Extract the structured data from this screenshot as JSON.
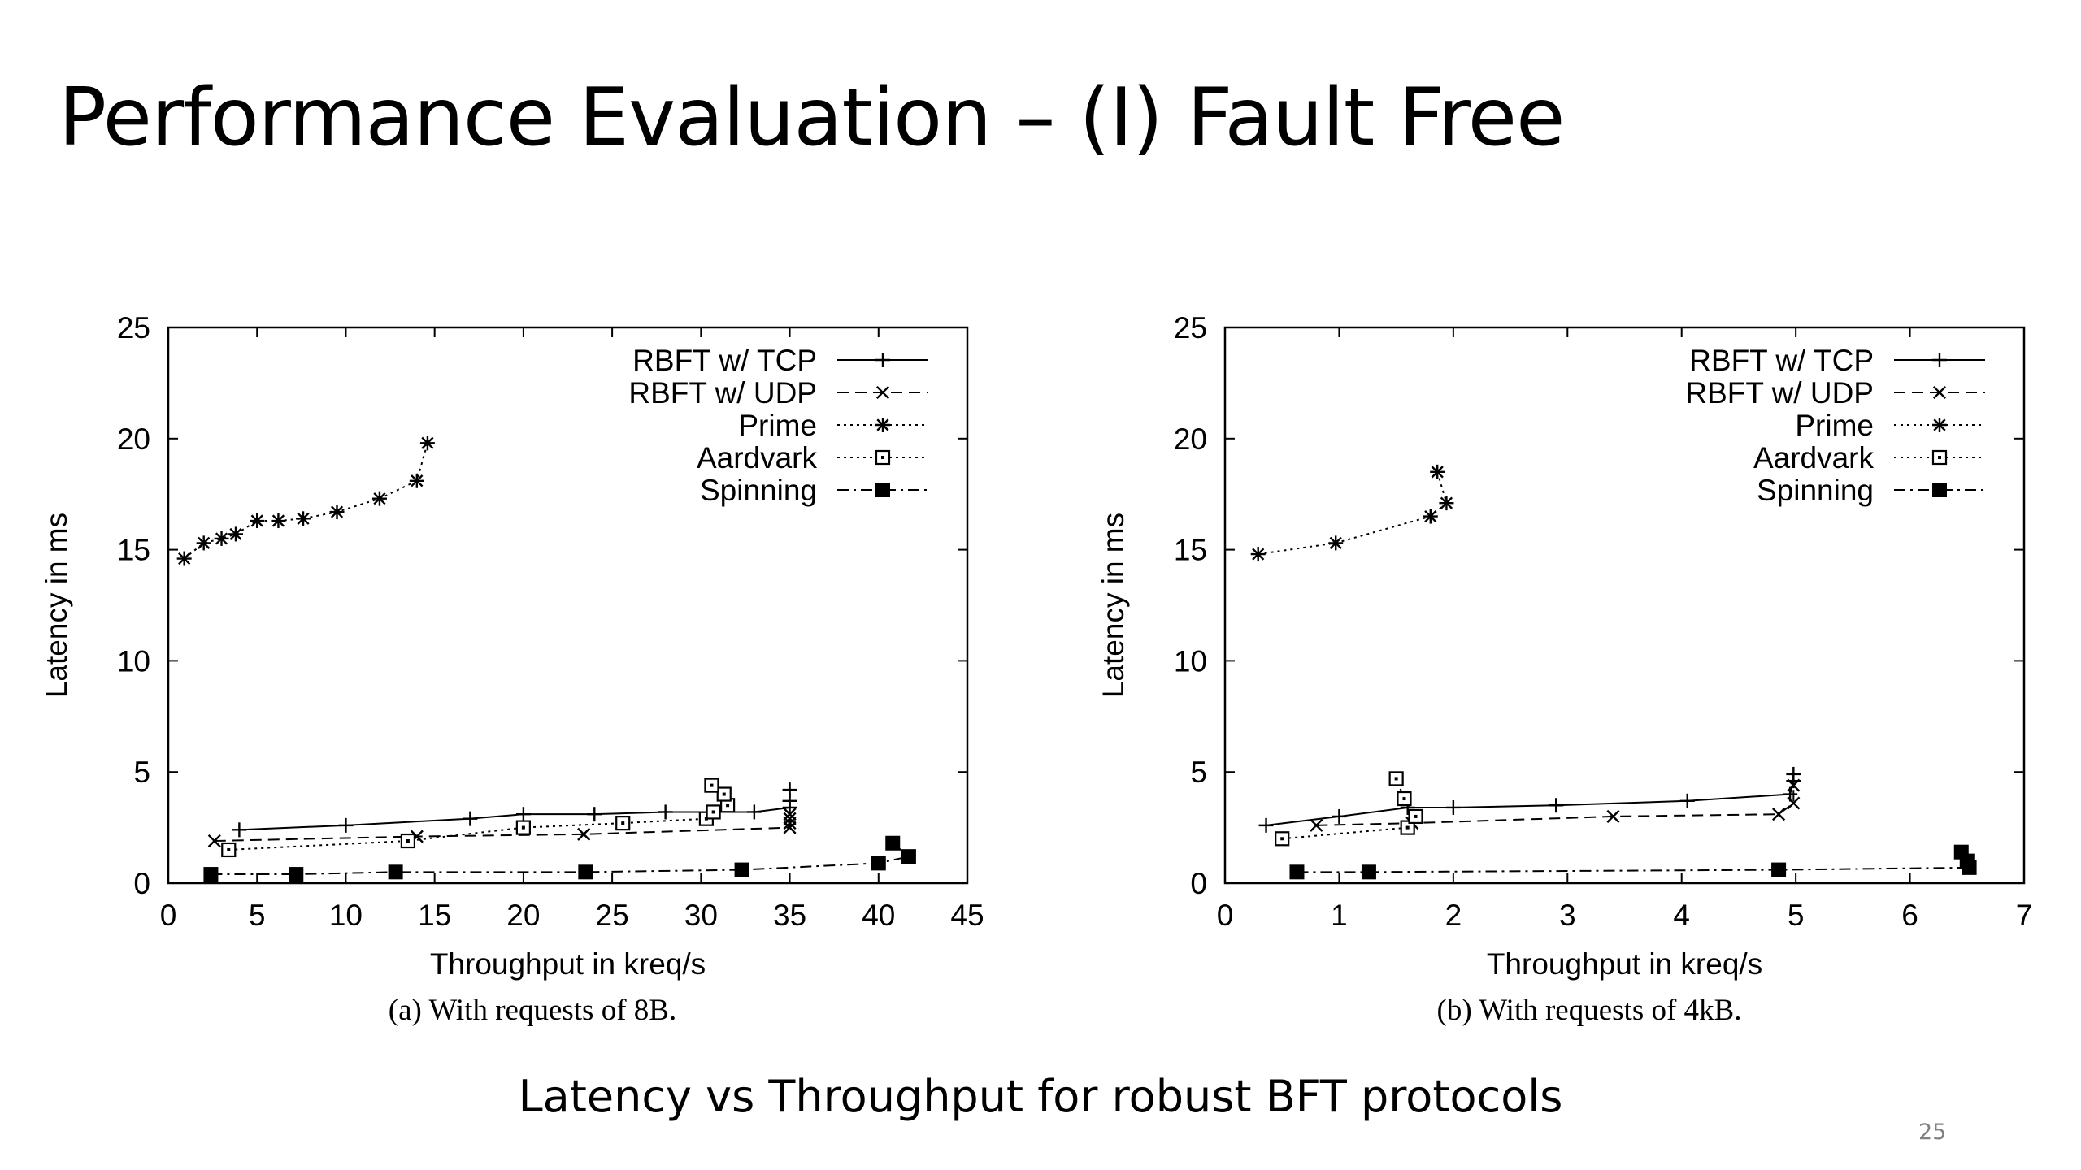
{
  "slide": {
    "title": "Performance Evaluation – (I) Fault Free",
    "subtitle": "Latency vs Throughput for robust BFT protocols",
    "page_number": "25"
  },
  "chart_data": [
    {
      "type": "line",
      "caption": "(a) With requests of 8B.",
      "xlabel": "Throughput in kreq/s",
      "ylabel": "Latency in ms",
      "xlim": [
        0,
        45
      ],
      "ylim": [
        0,
        25
      ],
      "xticks": [
        0,
        5,
        10,
        15,
        20,
        25,
        30,
        35,
        40,
        45
      ],
      "yticks": [
        0,
        5,
        10,
        15,
        20,
        25
      ],
      "legend_position": "top-right",
      "grid": false,
      "series": [
        {
          "name": "RBFT w/ TCP",
          "marker": "plus",
          "dash": "solid",
          "points": [
            [
              4,
              2.4
            ],
            [
              10,
              2.6
            ],
            [
              17,
              2.9
            ],
            [
              20,
              3.1
            ],
            [
              24,
              3.1
            ],
            [
              28,
              3.2
            ],
            [
              33,
              3.2
            ],
            [
              35,
              3.4
            ],
            [
              35,
              3.7
            ],
            [
              35,
              4.2
            ]
          ]
        },
        {
          "name": "RBFT w/ UDP",
          "marker": "cross",
          "dash": "dashed",
          "points": [
            [
              2.6,
              1.9
            ],
            [
              14,
              2.1
            ],
            [
              23.4,
              2.2
            ],
            [
              35,
              2.5
            ],
            [
              35,
              2.7
            ],
            [
              35,
              2.9
            ],
            [
              35,
              3.1
            ]
          ]
        },
        {
          "name": "Prime",
          "marker": "star",
          "dash": "dotted",
          "points": [
            [
              0.9,
              14.6
            ],
            [
              2,
              15.3
            ],
            [
              3,
              15.5
            ],
            [
              3.8,
              15.7
            ],
            [
              5,
              16.3
            ],
            [
              6.2,
              16.3
            ],
            [
              7.6,
              16.4
            ],
            [
              9.5,
              16.7
            ],
            [
              11.9,
              17.3
            ],
            [
              14,
              18.1
            ],
            [
              14.6,
              19.8
            ]
          ]
        },
        {
          "name": "Aardvark",
          "marker": "square-open",
          "dash": "dotted",
          "points": [
            [
              3.4,
              1.5
            ],
            [
              13.5,
              1.9
            ],
            [
              20,
              2.5
            ],
            [
              25.6,
              2.7
            ],
            [
              30.3,
              2.9
            ],
            [
              30.7,
              3.2
            ],
            [
              31.5,
              3.5
            ],
            [
              31.3,
              4.0
            ],
            [
              30.6,
              4.4
            ]
          ]
        },
        {
          "name": "Spinning",
          "marker": "square-filled",
          "dash": "dashdot",
          "points": [
            [
              2.4,
              0.4
            ],
            [
              7.2,
              0.4
            ],
            [
              12.8,
              0.5
            ],
            [
              23.5,
              0.5
            ],
            [
              32.3,
              0.6
            ],
            [
              40,
              0.9
            ],
            [
              41.7,
              1.2
            ],
            [
              40.8,
              1.8
            ]
          ]
        }
      ]
    },
    {
      "type": "line",
      "caption": "(b) With requests of 4kB.",
      "xlabel": "Throughput in kreq/s",
      "ylabel": "Latency in ms",
      "xlim": [
        0,
        7
      ],
      "ylim": [
        0,
        25
      ],
      "xticks": [
        0,
        1,
        2,
        3,
        4,
        5,
        6,
        7
      ],
      "yticks": [
        0,
        5,
        10,
        15,
        20,
        25
      ],
      "legend_position": "top-right",
      "grid": false,
      "series": [
        {
          "name": "RBFT w/ TCP",
          "marker": "plus",
          "dash": "solid",
          "points": [
            [
              0.36,
              2.6
            ],
            [
              1.0,
              3.0
            ],
            [
              1.6,
              3.4
            ],
            [
              2.0,
              3.4
            ],
            [
              2.9,
              3.5
            ],
            [
              4.05,
              3.7
            ],
            [
              4.95,
              4.0
            ],
            [
              4.98,
              4.6
            ],
            [
              4.98,
              4.9
            ]
          ]
        },
        {
          "name": "RBFT w/ UDP",
          "marker": "cross",
          "dash": "dashed",
          "points": [
            [
              0.8,
              2.6
            ],
            [
              1.64,
              2.7
            ],
            [
              3.4,
              3.0
            ],
            [
              4.85,
              3.1
            ],
            [
              4.98,
              3.6
            ],
            [
              4.98,
              4.4
            ]
          ]
        },
        {
          "name": "Prime",
          "marker": "star",
          "dash": "dotted",
          "points": [
            [
              0.29,
              14.8
            ],
            [
              0.97,
              15.3
            ],
            [
              1.8,
              16.5
            ],
            [
              1.94,
              17.1
            ],
            [
              1.86,
              18.5
            ]
          ]
        },
        {
          "name": "Aardvark",
          "marker": "square-open",
          "dash": "dotted",
          "points": [
            [
              0.5,
              2.0
            ],
            [
              1.6,
              2.5
            ],
            [
              1.67,
              3.0
            ],
            [
              1.57,
              3.8
            ],
            [
              1.5,
              4.7
            ]
          ]
        },
        {
          "name": "Spinning",
          "marker": "square-filled",
          "dash": "dashdot",
          "points": [
            [
              0.63,
              0.5
            ],
            [
              1.26,
              0.5
            ],
            [
              4.85,
              0.6
            ],
            [
              6.52,
              0.7
            ],
            [
              6.5,
              1.0
            ],
            [
              6.45,
              1.4
            ]
          ]
        }
      ]
    }
  ]
}
